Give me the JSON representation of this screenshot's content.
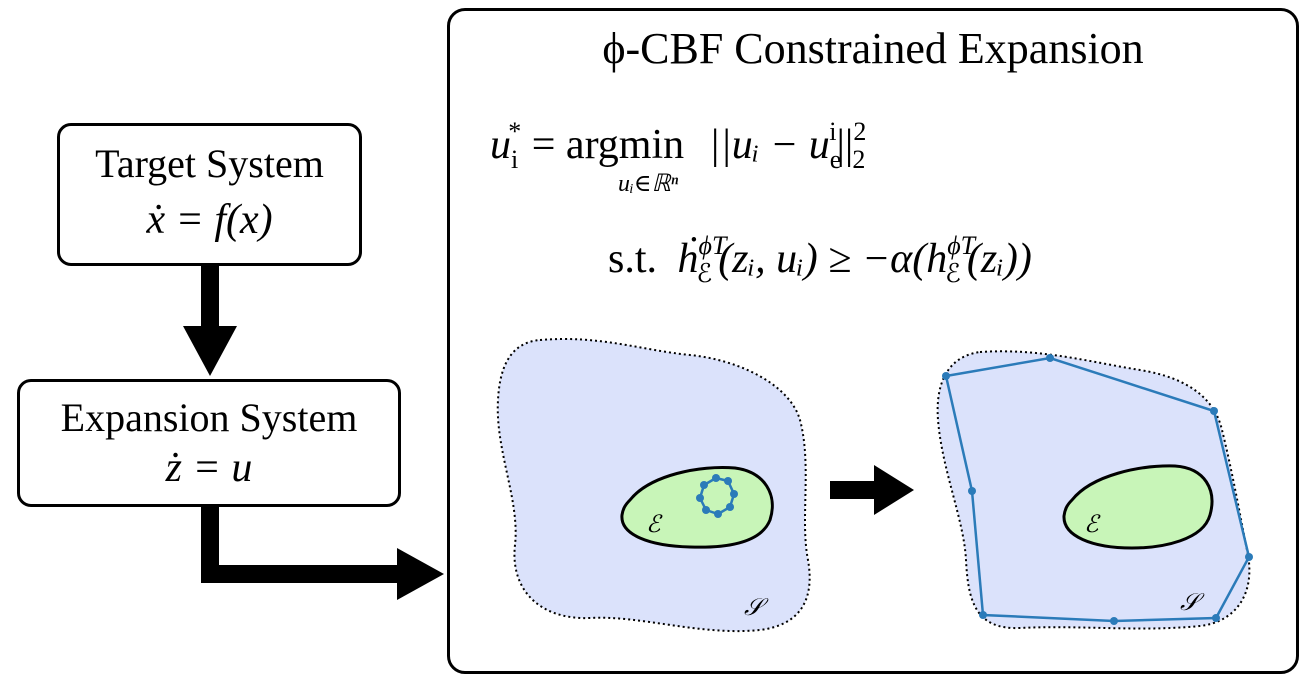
{
  "target_system": {
    "title": "Target System",
    "equation": "ẋ = f(x)"
  },
  "expansion_system": {
    "title": "Expansion System",
    "equation": "ż = u"
  },
  "panel": {
    "title": "ϕ-CBF Constrained Expansion",
    "objective": {
      "lhs": "u",
      "lhs_sub": "i",
      "lhs_sup": "*",
      "eq": "=",
      "op": "argmin",
      "op_sub": "uᵢ∈ℝⁿ",
      "cost": "||uᵢ − u",
      "cost_sub": "e",
      "cost_sup": "i",
      "cost_end": "||",
      "norm_sup": "2",
      "norm_sub": "2"
    },
    "constraint": {
      "st": "s.t.",
      "text": "ḣ",
      "h_sup": "ϕT",
      "h_sub": "ℰ",
      "args": "(zᵢ, uᵢ) ≥ −α(h",
      "h2_sup": "ϕT",
      "h2_sub": "ℰ",
      "args2": "(zᵢ))"
    }
  },
  "left_figure": {
    "inner_label": "ℰ",
    "outer_label": "𝒮"
  },
  "right_figure": {
    "inner_label": "ℰ",
    "outer_label": "𝒮"
  },
  "colors": {
    "safe_set_fill": "#dbe2fb",
    "inner_set_fill": "#c8f5b8",
    "polygon": "#2b7bb9",
    "line": "#000000"
  }
}
